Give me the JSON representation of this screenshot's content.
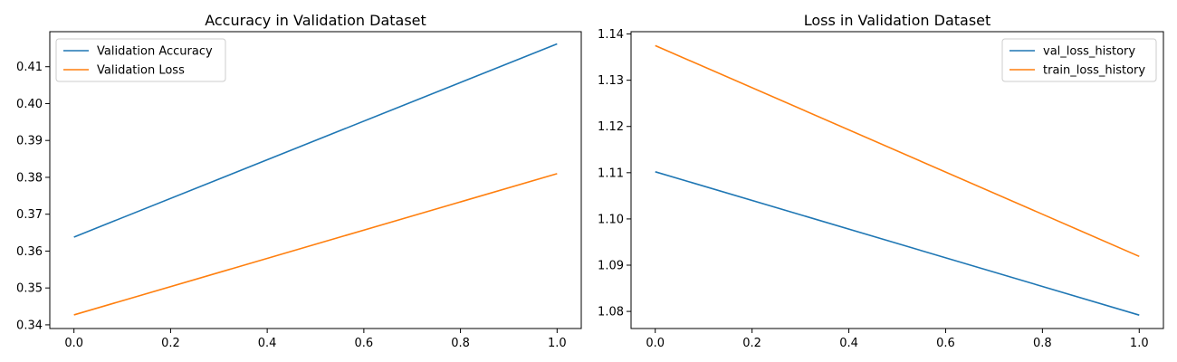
{
  "chart_data": [
    {
      "type": "line",
      "title": "Accuracy in Validation Dataset",
      "xlabel": "",
      "ylabel": "",
      "xlim": [
        -0.05,
        1.05
      ],
      "ylim": [
        0.339,
        0.4195
      ],
      "xticks": [
        0.0,
        0.2,
        0.4,
        0.6,
        0.8,
        1.0
      ],
      "xtick_labels": [
        "0.0",
        "0.2",
        "0.4",
        "0.6",
        "0.8",
        "1.0"
      ],
      "yticks": [
        0.34,
        0.35,
        0.36,
        0.37,
        0.38,
        0.39,
        0.4,
        0.41
      ],
      "ytick_labels": [
        "0.34",
        "0.35",
        "0.36",
        "0.37",
        "0.38",
        "0.39",
        "0.40",
        "0.41"
      ],
      "grid": false,
      "legend_position": "top-left",
      "series": [
        {
          "name": "Validation Accuracy",
          "color": "#1f77b4",
          "x": [
            0,
            1
          ],
          "y": [
            0.3638,
            0.4162
          ]
        },
        {
          "name": "Validation Loss",
          "color": "#ff7f0e",
          "x": [
            0,
            1
          ],
          "y": [
            0.3427,
            0.381
          ]
        }
      ]
    },
    {
      "type": "line",
      "title": "Loss in Validation Dataset",
      "xlabel": "",
      "ylabel": "",
      "xlim": [
        -0.05,
        1.05
      ],
      "ylim": [
        1.0763,
        1.1405
      ],
      "xticks": [
        0.0,
        0.2,
        0.4,
        0.6,
        0.8,
        1.0
      ],
      "xtick_labels": [
        "0.0",
        "0.2",
        "0.4",
        "0.6",
        "0.8",
        "1.0"
      ],
      "yticks": [
        1.08,
        1.09,
        1.1,
        1.11,
        1.12,
        1.13,
        1.14
      ],
      "ytick_labels": [
        "1.08",
        "1.09",
        "1.10",
        "1.11",
        "1.12",
        "1.13",
        "1.14"
      ],
      "grid": false,
      "legend_position": "top-right",
      "series": [
        {
          "name": "val_loss_history",
          "color": "#1f77b4",
          "x": [
            0,
            1
          ],
          "y": [
            1.1102,
            1.0792
          ]
        },
        {
          "name": "train_loss_history",
          "color": "#ff7f0e",
          "x": [
            0,
            1
          ],
          "y": [
            1.1375,
            1.0919
          ]
        }
      ]
    }
  ]
}
